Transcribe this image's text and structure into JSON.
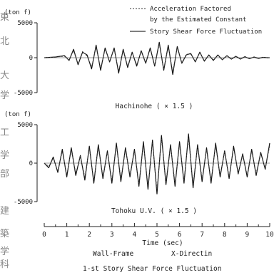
{
  "legend": {
    "dashed": "Acceleration Factored",
    "dashed_line2": "by the Estimated Constant",
    "solid": "Story Shear Force Fluctuation"
  },
  "side_chars": [
    "東",
    "北",
    "大",
    "学",
    "工",
    "学",
    "部",
    "建",
    "築",
    "学",
    "科"
  ],
  "bottom_caption": {
    "line1": "Wall-Frame",
    "line1b": "X-Directin",
    "line2": "1-st Story Shear Force Fluctuation"
  },
  "chart_data": [
    {
      "type": "line",
      "title": "Hachinohe ( × 1.5 )",
      "ylabel": "(ton f)",
      "ylim": [
        -5000,
        5000
      ],
      "yticks": [
        "5000",
        "0",
        "-5000"
      ],
      "xlim": [
        0,
        10
      ],
      "series": [
        {
          "name": "Story Shear Force Fluctuation",
          "style": "solid",
          "x": [
            0,
            0.5,
            0.9,
            1.1,
            1.3,
            1.5,
            1.7,
            1.9,
            2.1,
            2.3,
            2.5,
            2.7,
            2.9,
            3.1,
            3.3,
            3.5,
            3.7,
            3.9,
            4.1,
            4.3,
            4.5,
            4.7,
            4.9,
            5.1,
            5.3,
            5.5,
            5.7,
            5.9,
            6.1,
            6.3,
            6.5,
            6.7,
            6.9,
            7.1,
            7.3,
            7.5,
            7.7,
            7.9,
            8.1,
            8.3,
            8.5,
            8.7,
            8.9,
            9.1,
            9.3,
            9.5,
            9.7,
            9.9,
            10
          ],
          "y": [
            0,
            100,
            300,
            -400,
            1200,
            -1000,
            800,
            400,
            -1600,
            1800,
            -1800,
            1400,
            -600,
            1400,
            -2200,
            1200,
            -1400,
            800,
            -1200,
            1000,
            -800,
            1400,
            -1200,
            2200,
            -1800,
            1800,
            -2400,
            1600,
            -800,
            400,
            600,
            -600,
            800,
            -500,
            400,
            -400,
            400,
            -300,
            300,
            -200,
            200,
            -200,
            150,
            -150,
            100,
            -100,
            50,
            0,
            0
          ]
        },
        {
          "name": "Acceleration Factored by the Estimated Constant",
          "style": "dashed",
          "x": [
            0,
            0.5,
            0.9,
            1.1,
            1.3,
            1.5,
            1.7,
            1.9,
            2.1,
            2.3,
            2.5,
            2.7,
            2.9,
            3.1,
            3.3,
            3.5,
            3.7,
            3.9,
            4.1,
            4.3,
            4.5,
            4.7,
            4.9,
            5.1,
            5.3,
            5.5,
            5.7,
            5.9,
            6.1,
            6.3,
            6.5,
            6.7,
            6.9,
            7.1,
            7.3,
            7.5,
            7.7,
            7.9,
            8.1,
            8.3,
            8.5,
            8.7,
            8.9,
            9.1,
            9.3,
            9.5,
            9.7,
            9.9,
            10
          ],
          "y": [
            0,
            80,
            200,
            -300,
            1000,
            -900,
            900,
            200,
            -1300,
            1500,
            -1500,
            1200,
            -500,
            1200,
            -1900,
            1000,
            -1200,
            700,
            -1000,
            900,
            -700,
            1200,
            -1100,
            1900,
            -1600,
            1500,
            -2000,
            1400,
            -700,
            500,
            500,
            -500,
            700,
            -400,
            300,
            -300,
            300,
            -250,
            250,
            -150,
            150,
            -150,
            100,
            -100,
            80,
            -60,
            40,
            0,
            0
          ]
        }
      ]
    },
    {
      "type": "line",
      "title": "Tohoku U.V. ( × 1.5 )",
      "ylabel": "(ton f)",
      "ylim": [
        -5000,
        5000
      ],
      "yticks": [
        "5000",
        "0",
        "-5000"
      ],
      "xlim": [
        0,
        10
      ],
      "xlabel": "Time    (sec)",
      "xticks": [
        "0",
        "1",
        "2",
        "3",
        "4",
        "5",
        "6",
        "7",
        "8",
        "9",
        "10"
      ],
      "series": [
        {
          "name": "Story Shear Force Fluctuation",
          "style": "solid",
          "x": [
            0,
            0.2,
            0.4,
            0.6,
            0.8,
            1.0,
            1.2,
            1.4,
            1.6,
            1.8,
            2.0,
            2.2,
            2.4,
            2.6,
            2.8,
            3.0,
            3.2,
            3.4,
            3.6,
            3.8,
            4.0,
            4.2,
            4.4,
            4.6,
            4.8,
            5.0,
            5.2,
            5.4,
            5.6,
            5.8,
            6.0,
            6.2,
            6.4,
            6.6,
            6.8,
            7.0,
            7.2,
            7.4,
            7.6,
            7.8,
            8.0,
            8.2,
            8.4,
            8.6,
            8.8,
            9.0,
            9.2,
            9.4,
            9.6,
            9.8,
            10
          ],
          "y": [
            0,
            -600,
            800,
            -1200,
            1800,
            -1800,
            2000,
            -1600,
            1000,
            -2200,
            2200,
            -2600,
            2400,
            -2000,
            1600,
            -2600,
            2600,
            -2400,
            2000,
            -1800,
            1800,
            -3000,
            2800,
            -3400,
            3000,
            -4000,
            3600,
            -2800,
            2400,
            -3000,
            2800,
            -2600,
            3800,
            -3200,
            2400,
            -2400,
            2000,
            -2600,
            2600,
            -1800,
            1600,
            -2000,
            2200,
            -1400,
            1200,
            -1800,
            1800,
            -1600,
            1400,
            -800,
            2600
          ]
        },
        {
          "name": "Acceleration Factored by the Estimated Constant",
          "style": "dashed",
          "x": [
            0,
            0.2,
            0.4,
            0.6,
            0.8,
            1.0,
            1.2,
            1.4,
            1.6,
            1.8,
            2.0,
            2.2,
            2.4,
            2.6,
            2.8,
            3.0,
            3.2,
            3.4,
            3.6,
            3.8,
            4.0,
            4.2,
            4.4,
            4.6,
            4.8,
            5.0,
            5.2,
            5.4,
            5.6,
            5.8,
            6.0,
            6.2,
            6.4,
            6.6,
            6.8,
            7.0,
            7.2,
            7.4,
            7.6,
            7.8,
            8.0,
            8.2,
            8.4,
            8.6,
            8.8,
            9.0,
            9.2,
            9.4,
            9.6,
            9.8,
            10
          ],
          "y": [
            0,
            -400,
            600,
            -1000,
            1500,
            -1500,
            1700,
            -1300,
            900,
            -1800,
            1900,
            -2200,
            2000,
            -1700,
            1400,
            -2200,
            2200,
            -2000,
            1700,
            -1500,
            1500,
            -2600,
            2400,
            -2900,
            2600,
            -3400,
            3100,
            -2400,
            2100,
            -2600,
            2400,
            -2200,
            3200,
            -2700,
            2100,
            -2000,
            1700,
            -2200,
            2200,
            -1500,
            1400,
            -1700,
            1900,
            -1200,
            1000,
            -1500,
            1500,
            -1300,
            1200,
            -700,
            2200
          ]
        }
      ]
    }
  ]
}
